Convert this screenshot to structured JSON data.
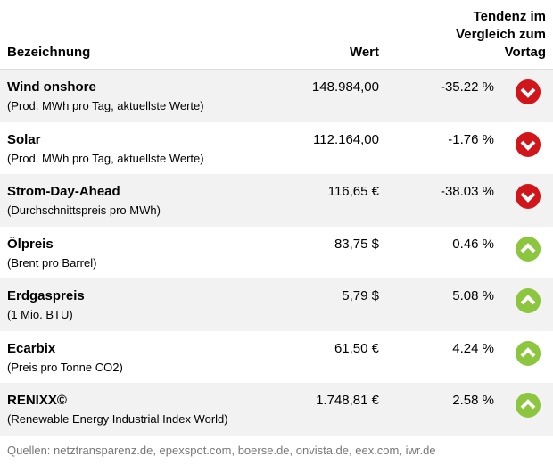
{
  "header": {
    "name": "Bezeichnung",
    "value": "Wert",
    "trend": "Tendenz im Vergleich zum Vortag"
  },
  "rows": [
    {
      "name": "Wind onshore",
      "sub": "(Prod. MWh pro Tag, aktuellste Werte)",
      "value": "148.984,00",
      "change": "-35.22 %"
    },
    {
      "name": "Solar",
      "sub": "(Prod. MWh pro Tag, aktuellste Werte)",
      "value": "112.164,00",
      "change": "-1.76 %"
    },
    {
      "name": "Strom-Day-Ahead",
      "sub": "(Durchschnittspreis pro MWh)",
      "value": "116,65 €",
      "change": "-38.03 %"
    },
    {
      "name": "Ölpreis",
      "sub": "(Brent pro Barrel)",
      "value": "83,75 $",
      "change": "0.46 %"
    },
    {
      "name": "Erdgaspreis",
      "sub": "(1 Mio. BTU)",
      "value": "5,79 $",
      "change": "5.08 %"
    },
    {
      "name": "Ecarbix",
      "sub": "(Preis pro Tonne CO2)",
      "value": "61,50 €",
      "change": "4.24 %"
    },
    {
      "name": "RENIXX©",
      "sub": "(Renewable Energy Industrial Index World)",
      "value": "1.748,81 €",
      "change": "2.58 %"
    }
  ],
  "footer": "Quellen: netztransparenz.de, epexspot.com, boerse.de, onvista.de, eex.com, iwr.de"
}
